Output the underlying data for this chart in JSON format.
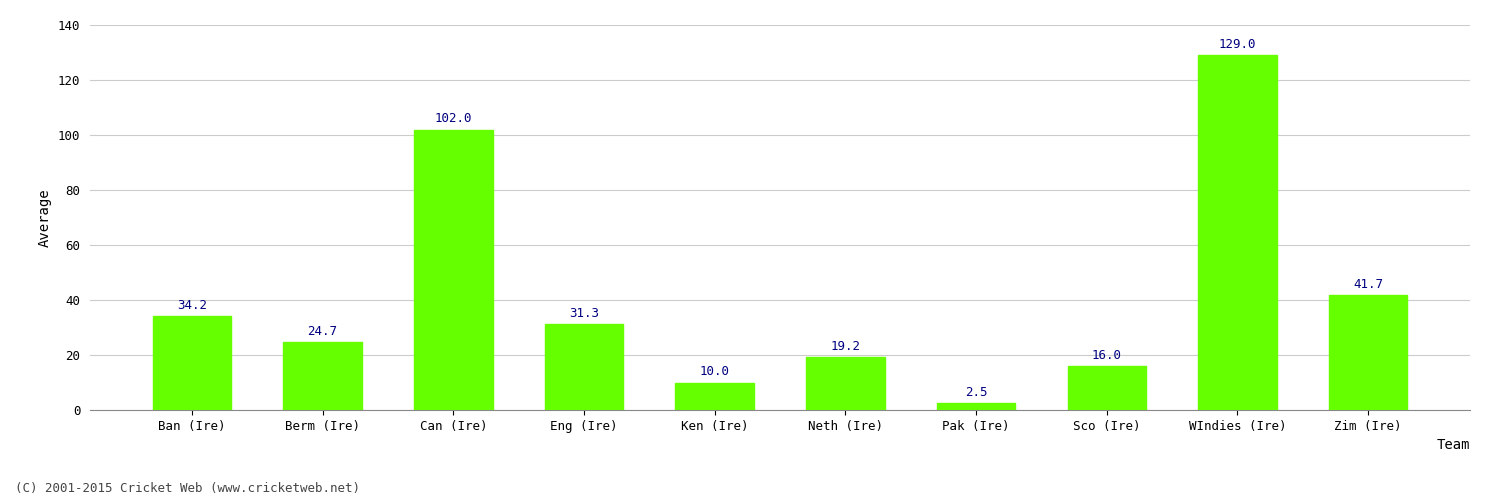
{
  "categories": [
    "Ban (Ire)",
    "Berm (Ire)",
    "Can (Ire)",
    "Eng (Ire)",
    "Ken (Ire)",
    "Neth (Ire)",
    "Pak (Ire)",
    "Sco (Ire)",
    "WIndies (Ire)",
    "Zim (Ire)"
  ],
  "values": [
    34.2,
    24.7,
    102.0,
    31.3,
    10.0,
    19.2,
    2.5,
    16.0,
    129.0,
    41.7
  ],
  "bar_color": "#66ff00",
  "bar_edge_color": "#66ff00",
  "title": "",
  "xlabel": "Team",
  "ylabel": "Average",
  "ylim": [
    0,
    140
  ],
  "yticks": [
    0,
    20,
    40,
    60,
    80,
    100,
    120,
    140
  ],
  "label_color": "#000080",
  "label_fontsize": 9,
  "axis_label_fontsize": 10,
  "tick_fontsize": 9,
  "background_color": "#ffffff",
  "grid_color": "#cccccc",
  "footer_text": "(C) 2001-2015 Cricket Web (www.cricketweb.net)",
  "footer_fontsize": 9,
  "footer_color": "#444444"
}
